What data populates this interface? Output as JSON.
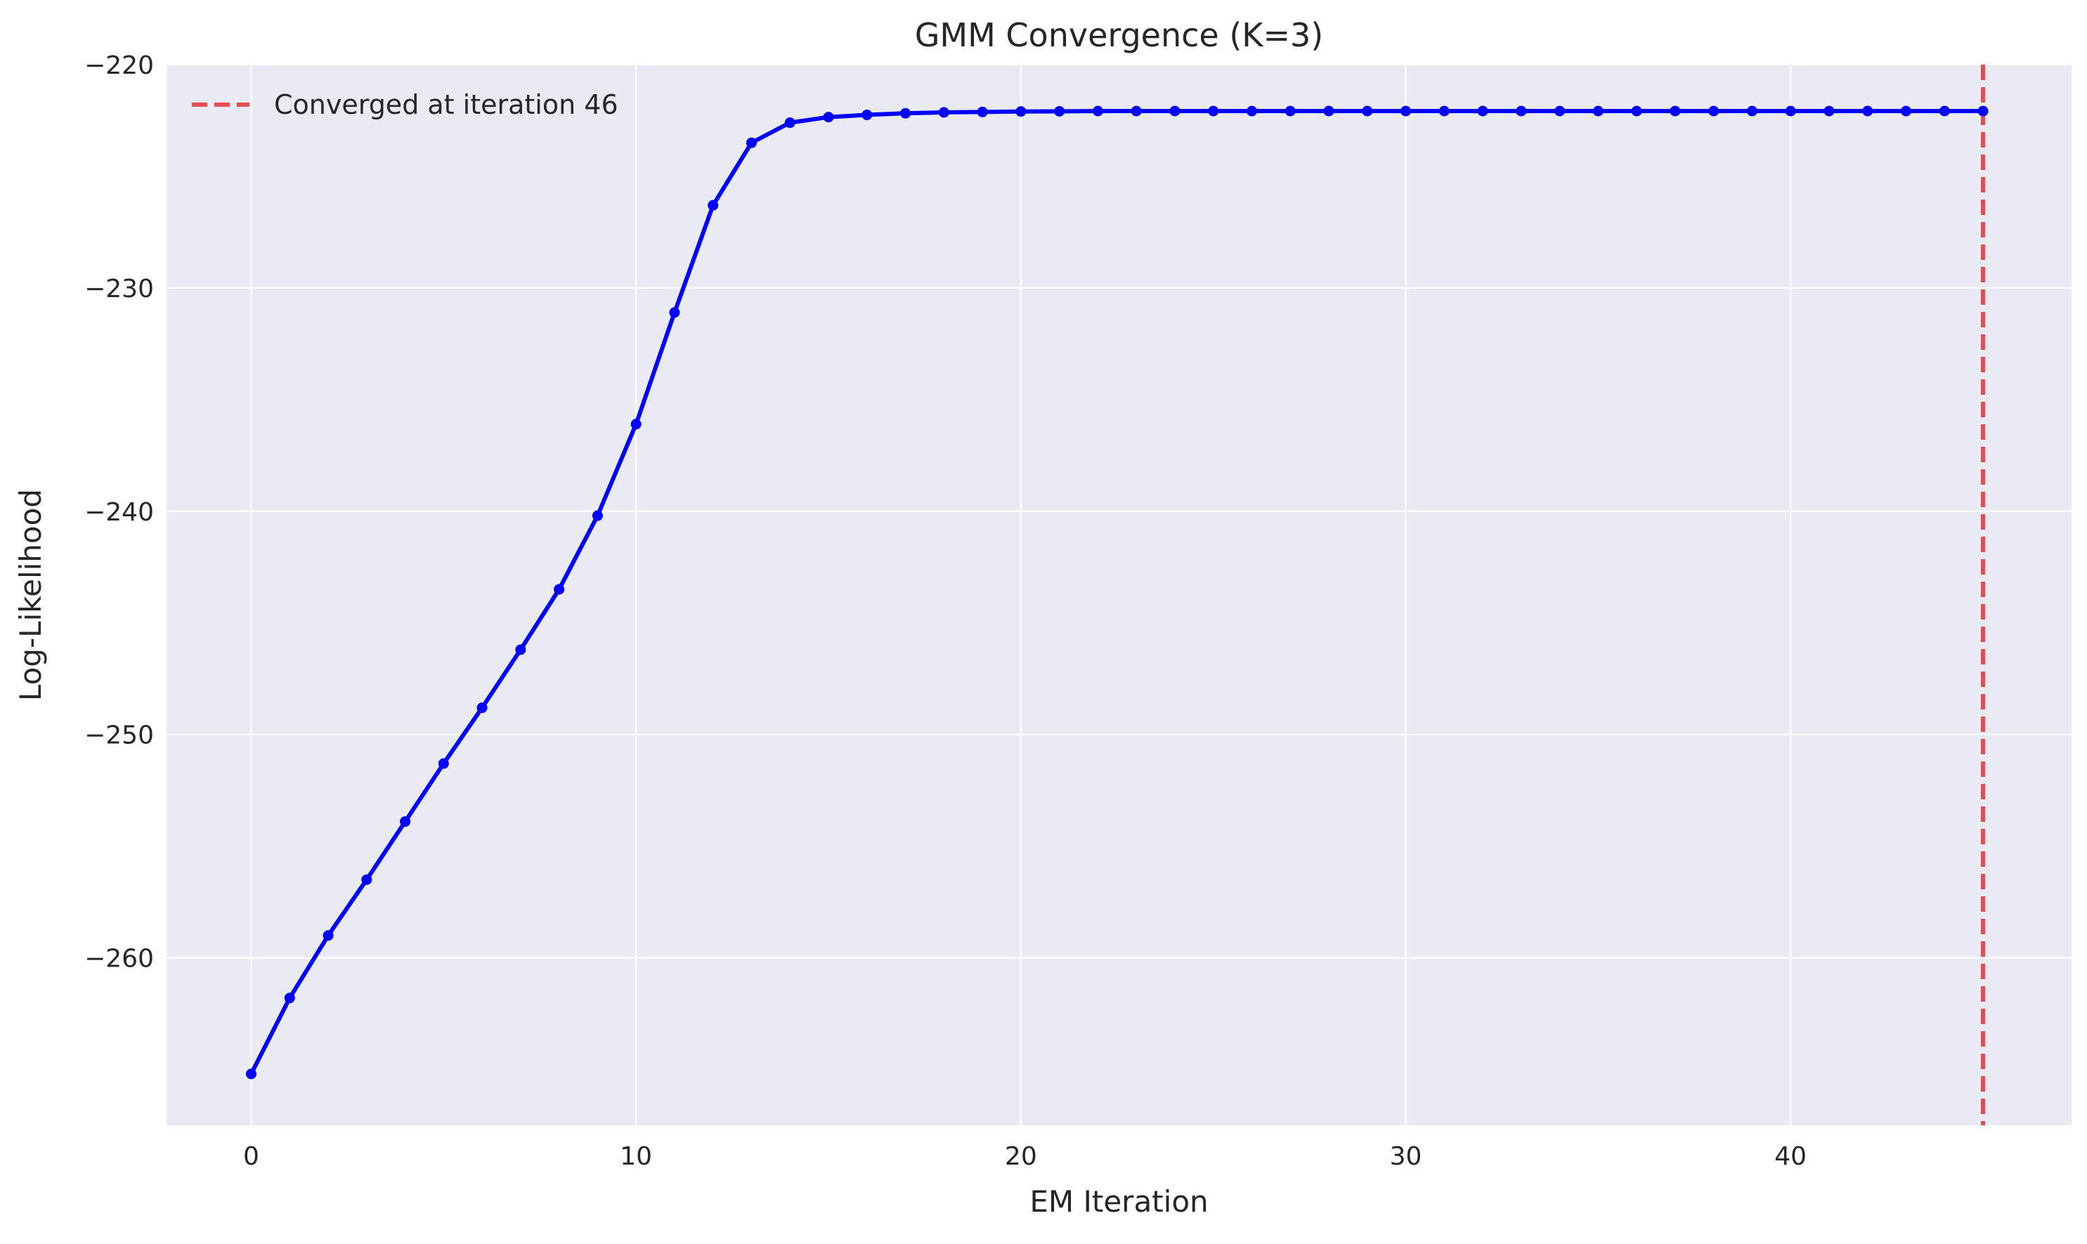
{
  "chart_data": {
    "type": "line",
    "title": "GMM Convergence (K=3)",
    "xlabel": "EM Iteration",
    "ylabel": "Log-Likelihood",
    "xlim": [
      -2.2,
      47.3
    ],
    "ylim": [
      -267.5,
      -220
    ],
    "grid": true,
    "legend_position": "top-left",
    "xticks": [
      0,
      10,
      20,
      30,
      40
    ],
    "xtick_labels": [
      "0",
      "10",
      "20",
      "30",
      "40"
    ],
    "yticks": [
      -260,
      -250,
      -240,
      -230,
      -220
    ],
    "ytick_labels": [
      "−260",
      "−250",
      "−240",
      "−230",
      "−220"
    ],
    "series": [
      {
        "color": "#0000ff",
        "marker": "circle",
        "x": [
          0,
          1,
          2,
          3,
          4,
          5,
          6,
          7,
          8,
          9,
          10,
          11,
          12,
          13,
          14,
          15,
          16,
          17,
          18,
          19,
          20,
          21,
          22,
          23,
          24,
          25,
          26,
          27,
          28,
          29,
          30,
          31,
          32,
          33,
          34,
          35,
          36,
          37,
          38,
          39,
          40,
          41,
          42,
          43,
          44,
          45
        ],
        "y": [
          -265.2,
          -261.8,
          -259.0,
          -256.5,
          -253.9,
          -251.3,
          -248.8,
          -246.2,
          -243.5,
          -240.2,
          -236.1,
          -231.1,
          -226.3,
          -223.5,
          -222.6,
          -222.35,
          -222.25,
          -222.18,
          -222.14,
          -222.12,
          -222.1,
          -222.09,
          -222.08,
          -222.08,
          -222.08,
          -222.08,
          -222.08,
          -222.08,
          -222.08,
          -222.08,
          -222.08,
          -222.08,
          -222.08,
          -222.08,
          -222.08,
          -222.08,
          -222.08,
          -222.08,
          -222.08,
          -222.08,
          -222.08,
          -222.08,
          -222.08,
          -222.08,
          -222.08,
          -222.08
        ]
      }
    ],
    "annotations": [
      {
        "type": "vline",
        "x": 45,
        "color": "#e8393d",
        "style": "dashed",
        "label": "Converged at iteration 46"
      }
    ],
    "colors": {
      "axes_background": "#eaeaf2",
      "grid": "#ffffff"
    }
  }
}
